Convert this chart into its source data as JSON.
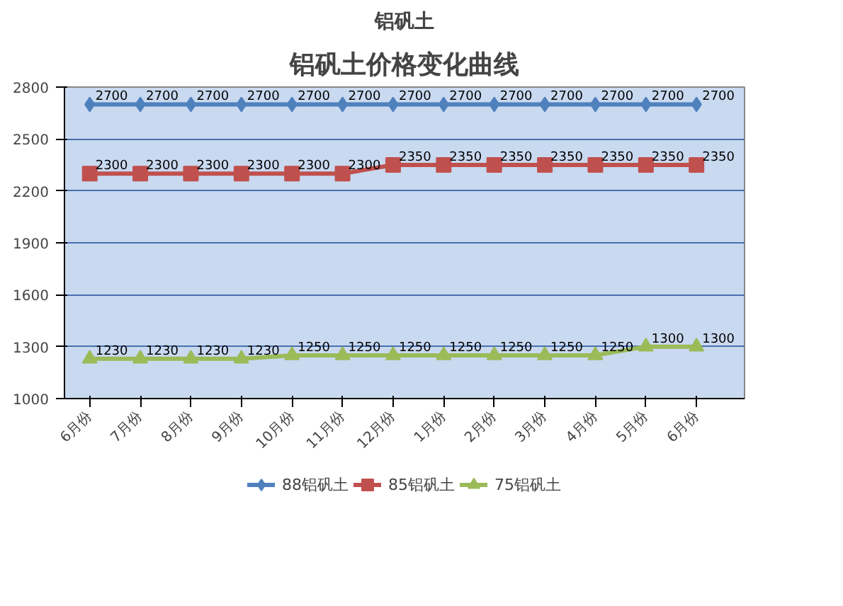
{
  "chart_data": {
    "type": "line",
    "title": "铝矾土价格变化曲线",
    "annotations": [
      "铝矾土"
    ],
    "categories": [
      "6月份",
      "7月份",
      "8月份",
      "9月份",
      "10月份",
      "11月份",
      "12月份",
      "1月份",
      "2月份",
      "3月份",
      "4月份",
      "5月份",
      "6月份"
    ],
    "series": [
      {
        "name": "88铝矾土",
        "color": "#4f81bd",
        "marker": "diamond",
        "values": [
          2700,
          2700,
          2700,
          2700,
          2700,
          2700,
          2700,
          2700,
          2700,
          2700,
          2700,
          2700,
          2700
        ]
      },
      {
        "name": "85铝矾土",
        "color": "#c0504d",
        "marker": "square",
        "values": [
          2300,
          2300,
          2300,
          2300,
          2300,
          2300,
          2350,
          2350,
          2350,
          2350,
          2350,
          2350,
          2350
        ]
      },
      {
        "name": "75铝矾土",
        "color": "#9bbb59",
        "marker": "triangle",
        "values": [
          1230,
          1230,
          1230,
          1230,
          1250,
          1250,
          1250,
          1250,
          1250,
          1250,
          1250,
          1300,
          1300
        ]
      }
    ],
    "ylim": [
      1000,
      2800
    ],
    "yticks": [
      1000,
      1300,
      1600,
      1900,
      2200,
      2500,
      2800
    ],
    "grid": "y",
    "legend": "bottom",
    "data_labels": true
  }
}
